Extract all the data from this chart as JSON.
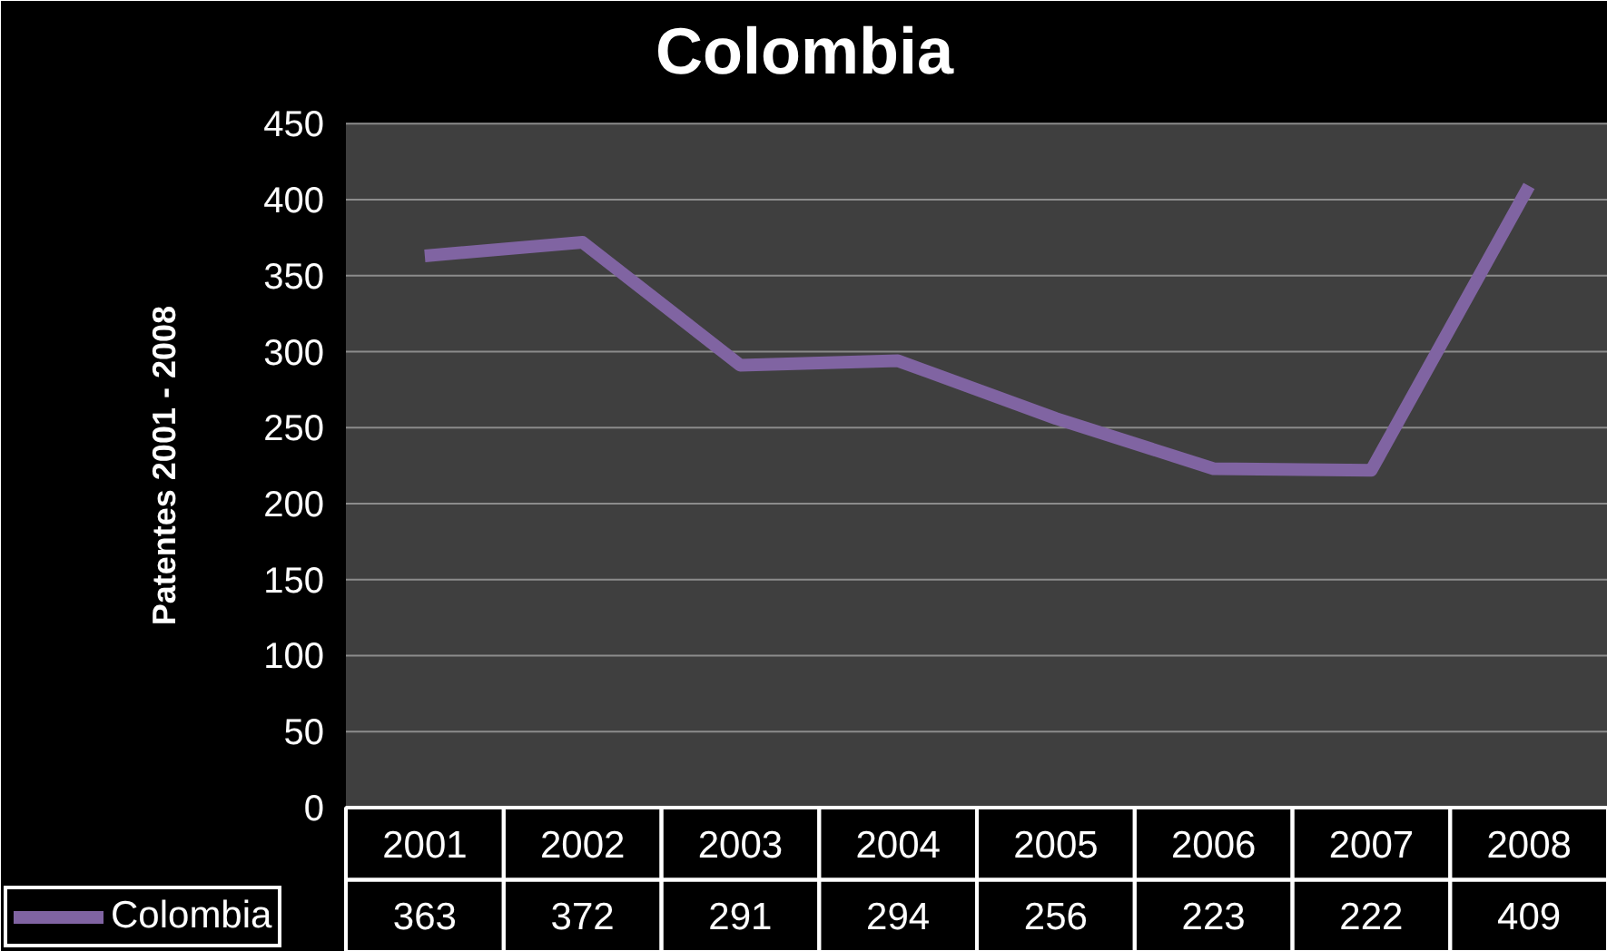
{
  "chart_data": {
    "type": "line",
    "title": "Colombia",
    "ylabel": "Patentes 2001 - 2008",
    "categories": [
      "2001",
      "2002",
      "2003",
      "2004",
      "2005",
      "2006",
      "2007",
      "2008"
    ],
    "series": [
      {
        "name": "Colombia",
        "color": "#8064a2",
        "values": [
          363,
          372,
          291,
          294,
          256,
          223,
          222,
          409
        ]
      }
    ],
    "ylim": [
      0,
      450
    ],
    "yticks": [
      0,
      50,
      100,
      150,
      200,
      250,
      300,
      350,
      400,
      450
    ],
    "grid": "y",
    "legend": "bottom",
    "data_labels": true,
    "marker": "none",
    "line_style": "solid"
  }
}
